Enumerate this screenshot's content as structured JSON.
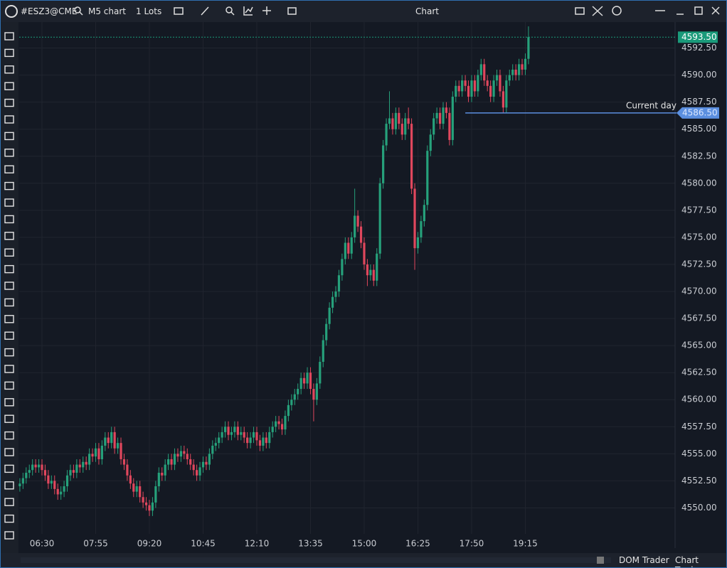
{
  "toolbar": {
    "symbol": "#ESZ3@CME",
    "timeframe": "M5 chart",
    "quantity": "1 Lots",
    "title": "Chart"
  },
  "footer": {
    "dom_trader": "DOM Trader",
    "chart_trader": "Chart Trader"
  },
  "chart_data": {
    "type": "candlestick",
    "up_color": "#26a17b",
    "down_color": "#e0475d",
    "grid": true,
    "ylim": [
      4547.6,
      4594.9
    ],
    "yticks": [
      {
        "value": 4550,
        "label": "4550.00"
      },
      {
        "value": 4552.5,
        "label": "4552.50"
      },
      {
        "value": 4555,
        "label": "4555.00"
      },
      {
        "value": 4557.5,
        "label": "4557.50"
      },
      {
        "value": 4560,
        "label": "4560.00"
      },
      {
        "value": 4562.5,
        "label": "4562.50"
      },
      {
        "value": 4565,
        "label": "4565.00"
      },
      {
        "value": 4567.5,
        "label": "4567.50"
      },
      {
        "value": 4570,
        "label": "4570.00"
      },
      {
        "value": 4572.5,
        "label": "4572.50"
      },
      {
        "value": 4575,
        "label": "4575.00"
      },
      {
        "value": 4577.5,
        "label": "4577.50"
      },
      {
        "value": 4580,
        "label": "4580.00"
      },
      {
        "value": 4582.5,
        "label": "4582.50"
      },
      {
        "value": 4585,
        "label": "4585.00"
      },
      {
        "value": 4587.5,
        "label": "4587.50"
      },
      {
        "value": 4590,
        "label": "4590.00"
      },
      {
        "value": 4592.5,
        "label": "4592.50"
      }
    ],
    "xticks": [
      {
        "value": 7,
        "label": "06:30"
      },
      {
        "value": 24,
        "label": "07:55"
      },
      {
        "value": 41,
        "label": "09:20"
      },
      {
        "value": 58,
        "label": "10:45"
      },
      {
        "value": 75,
        "label": "12:10"
      },
      {
        "value": 92,
        "label": "13:35"
      },
      {
        "value": 109,
        "label": "15:00"
      },
      {
        "value": 126,
        "label": "16:25"
      },
      {
        "value": 143,
        "label": "17:50"
      },
      {
        "value": 160,
        "label": "19:15"
      }
    ],
    "open": [
      4552,
      4552.25,
      4552.75,
      4553.25,
      4553.5,
      4554,
      4553.75,
      4554,
      4553.5,
      4553,
      4552.25,
      4552.5,
      4551.75,
      4551.25,
      4551.5,
      4552,
      4553,
      4553.5,
      4553.25,
      4554,
      4553.75,
      4554.25,
      4554,
      4555,
      4554.75,
      4555.5,
      4554.5,
      4555.75,
      4556.5,
      4556,
      4557,
      4555.5,
      4556,
      4554.5,
      4554,
      4553,
      4552.25,
      4551.5,
      4552,
      4551,
      4550.5,
      4550.25,
      4549.75,
      4550.5,
      4552,
      4553.25,
      4553,
      4554,
      4554.5,
      4554,
      4555,
      4554.75,
      4555.25,
      4555,
      4554.5,
      4554,
      4553.5,
      4553,
      4553.75,
      4554.25,
      4554,
      4555,
      4555.75,
      4556,
      4556.5,
      4557,
      4557.5,
      4556.75,
      4557,
      4557.5,
      4556.75,
      4557,
      4556.5,
      4556,
      4556.5,
      4557,
      4556.25,
      4555.75,
      4556.5,
      4556,
      4557,
      4557.5,
      4558,
      4557.75,
      4557.25,
      4558.5,
      4559.5,
      4560,
      4560.5,
      4561,
      4562,
      4561.5,
      4562.5,
      4561,
      4560,
      4561.5,
      4563.5,
      4565.5,
      4567,
      4568.5,
      4569.5,
      4570,
      4571.5,
      4573,
      4574.5,
      4573.5,
      4575,
      4577,
      4576,
      4574.5,
      4572.5,
      4571.5,
      4572,
      4571,
      4573.5,
      4580,
      4583.5,
      4585.5,
      4586,
      4585,
      4586.5,
      4585.5,
      4584.5,
      4586,
      4585.5,
      4579.5,
      4574,
      4575,
      4576.5,
      4578,
      4583,
      4584.5,
      4586,
      4586.5,
      4585.5,
      4587,
      4586.5,
      4584,
      4588,
      4589,
      4588.5,
      4589.5,
      4589,
      4588,
      4589.5,
      4588.5,
      4590,
      4591,
      4589.5,
      4589,
      4588,
      4589.5,
      4590,
      4588.5,
      4587,
      4589.5,
      4590,
      4590.5,
      4590,
      4591,
      4590.5,
      4591.5
    ],
    "high": [
      4552.75,
      4553.25,
      4553.75,
      4554,
      4554.5,
      4554.5,
      4554.5,
      4554.5,
      4554,
      4553.5,
      4553,
      4553,
      4552.25,
      4552,
      4552.5,
      4553.5,
      4554,
      4554,
      4554.5,
      4554.5,
      4554.75,
      4554.75,
      4555.5,
      4555.5,
      4556,
      4556,
      4556.25,
      4557,
      4557,
      4557.5,
      4557.5,
      4556.5,
      4556.5,
      4555,
      4554.5,
      4553.5,
      4552.75,
      4552.5,
      4552.5,
      4551.5,
      4551,
      4550.75,
      4551,
      4552.5,
      4553.75,
      4553.75,
      4554.5,
      4555,
      4555,
      4555.5,
      4555.5,
      4555.75,
      4555.75,
      4555.5,
      4555,
      4554.5,
      4554,
      4554.25,
      4554.75,
      4554.75,
      4555.5,
      4556.25,
      4556.5,
      4557,
      4557.5,
      4558,
      4558,
      4557.5,
      4558,
      4558,
      4557.5,
      4557.5,
      4557,
      4557,
      4557.5,
      4557.5,
      4556.75,
      4557,
      4557,
      4557.5,
      4558,
      4558.5,
      4558.5,
      4558.25,
      4559,
      4560,
      4560.5,
      4561,
      4561.5,
      4562.5,
      4562.5,
      4563,
      4563,
      4561.5,
      4562,
      4564,
      4566,
      4567.5,
      4569,
      4570,
      4570.5,
      4572,
      4573.5,
      4575,
      4575,
      4575.5,
      4579.5,
      4577.5,
      4576.5,
      4575,
      4573,
      4572.5,
      4572.5,
      4574,
      4580.5,
      4584,
      4586,
      4588.5,
      4586.5,
      4587,
      4587,
      4586,
      4586.5,
      4587,
      4586,
      4580,
      4575.5,
      4577,
      4578.5,
      4583.5,
      4585,
      4586.5,
      4587,
      4587,
      4587.5,
      4587.5,
      4587,
      4588.5,
      4589.5,
      4589.5,
      4590,
      4590,
      4589.5,
      4590,
      4590,
      4590.5,
      4591.5,
      4591.5,
      4590,
      4589.5,
      4590,
      4590.5,
      4590.5,
      4589,
      4590,
      4590.5,
      4591,
      4591,
      4591.5,
      4591.5,
      4592,
      4594.5
    ],
    "low": [
      4551.5,
      4551.75,
      4552.25,
      4552.75,
      4553,
      4553.25,
      4553.25,
      4553,
      4552.5,
      4551.75,
      4551.75,
      4551.25,
      4550.75,
      4550.75,
      4551,
      4551.5,
      4552.5,
      4552.75,
      4552.75,
      4553.25,
      4553.25,
      4553.5,
      4553.5,
      4554.25,
      4554.25,
      4554,
      4554,
      4555.25,
      4555.5,
      4555.5,
      4555,
      4555,
      4554,
      4553.5,
      4552.5,
      4551.75,
      4551,
      4551,
      4550.5,
      4550,
      4549.75,
      4549.25,
      4549.25,
      4550,
      4551.5,
      4552.5,
      4552.5,
      4553.5,
      4553.5,
      4553.5,
      4554.25,
      4554.25,
      4554.5,
      4554,
      4553.5,
      4553,
      4552.5,
      4552.5,
      4553.25,
      4553.5,
      4553.5,
      4554.5,
      4555.25,
      4555.5,
      4556,
      4556.5,
      4556.25,
      4556.25,
      4556.5,
      4556.25,
      4556.25,
      4556,
      4555.5,
      4555.5,
      4556,
      4555.75,
      4555.25,
      4555.25,
      4555.5,
      4555.5,
      4556.5,
      4557,
      4557.25,
      4556.75,
      4556.75,
      4558,
      4559,
      4559.5,
      4560,
      4560.5,
      4561,
      4561,
      4560.5,
      4558,
      4559.5,
      4561,
      4563,
      4565,
      4566.5,
      4568,
      4569,
      4569.5,
      4571,
      4572.5,
      4573,
      4573,
      4574.5,
      4575.5,
      4574,
      4572,
      4570.5,
      4571,
      4570.5,
      4570.5,
      4573,
      4579.5,
      4583,
      4585,
      4584.5,
      4584.5,
      4585,
      4584,
      4584,
      4585,
      4579,
      4572,
      4573.5,
      4574.5,
      4576,
      4577.5,
      4582.5,
      4584,
      4585.5,
      4585,
      4585,
      4586,
      4583.5,
      4583.5,
      4587.5,
      4588,
      4588,
      4588.5,
      4587.5,
      4587.5,
      4588,
      4588,
      4589.5,
      4589,
      4588.5,
      4587.5,
      4587.5,
      4589,
      4588,
      4586.5,
      4586.5,
      4589,
      4589.5,
      4589.5,
      4589.5,
      4590,
      4590,
      4591
    ],
    "close": [
      4552.25,
      4552.75,
      4553.25,
      4553.5,
      4554,
      4553.75,
      4554,
      4553.5,
      4553,
      4552.25,
      4552.5,
      4551.75,
      4551.25,
      4551.5,
      4552,
      4553,
      4553.5,
      4553.25,
      4554,
      4553.75,
      4554.25,
      4554,
      4555,
      4554.75,
      4555.5,
      4554.5,
      4555.75,
      4556.5,
      4556,
      4557,
      4555.5,
      4556,
      4554.5,
      4554,
      4553,
      4552.25,
      4551.5,
      4552,
      4551,
      4550.5,
      4550.25,
      4549.75,
      4550.5,
      4552,
      4553.25,
      4553,
      4554,
      4554.5,
      4554,
      4555,
      4554.75,
      4555.25,
      4555,
      4554.5,
      4554,
      4553.5,
      4553,
      4553.75,
      4554.25,
      4554,
      4555,
      4555.75,
      4556,
      4556.5,
      4557,
      4557.5,
      4556.75,
      4557,
      4557.5,
      4556.75,
      4557,
      4556.5,
      4556,
      4556.5,
      4557,
      4556.25,
      4555.75,
      4556.5,
      4556,
      4557,
      4557.5,
      4558,
      4557.75,
      4557.25,
      4558.5,
      4559.5,
      4560,
      4560.5,
      4561,
      4562,
      4561.5,
      4562.5,
      4561,
      4560,
      4561.5,
      4563.5,
      4565.5,
      4567,
      4568.5,
      4569.5,
      4570,
      4571.5,
      4573,
      4574.5,
      4573.5,
      4575,
      4577,
      4576,
      4574.5,
      4572.5,
      4571.5,
      4572,
      4571,
      4573.5,
      4580,
      4583.5,
      4585.5,
      4586,
      4585,
      4586.5,
      4585.5,
      4584.5,
      4586,
      4585.5,
      4579.5,
      4574,
      4575,
      4576.5,
      4578,
      4583,
      4584.5,
      4586,
      4586.5,
      4585.5,
      4587,
      4586.5,
      4584,
      4588,
      4589,
      4588.5,
      4589.5,
      4589,
      4588,
      4589.5,
      4588.5,
      4590,
      4591,
      4589.5,
      4589,
      4588,
      4589.5,
      4590,
      4588.5,
      4587,
      4589.5,
      4590,
      4590.5,
      4590,
      4591,
      4590.5,
      4591.5,
      4593.5
    ],
    "current_price": {
      "value": 4593.5,
      "value_label": "4593.50",
      "color": "#1a9a7a"
    },
    "current_day": {
      "label": "Current day",
      "value": 4586.5,
      "value_label": "4586.50",
      "start": 141,
      "color": "#5b8fe0"
    }
  }
}
